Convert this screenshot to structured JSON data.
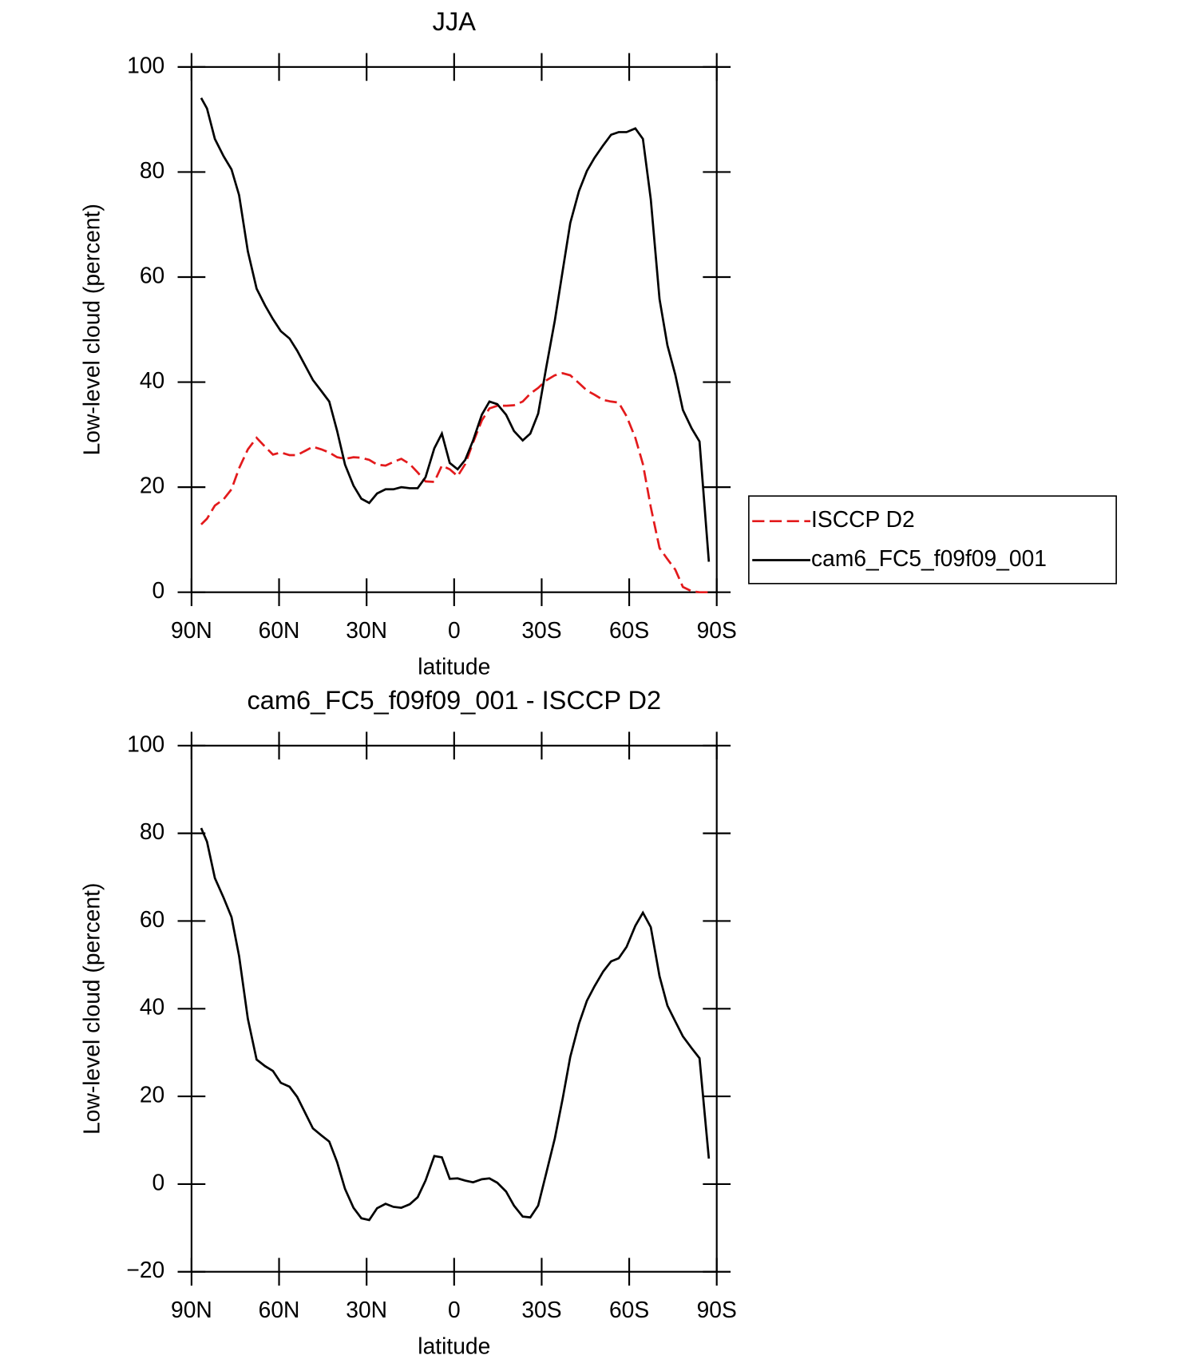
{
  "chart_data": [
    {
      "type": "line",
      "title": "JJA",
      "xlabel": "latitude",
      "ylabel": "Low-level cloud (percent)",
      "xlim": [
        90,
        -90
      ],
      "ylim": [
        0,
        100
      ],
      "xticks": [
        {
          "value": 90,
          "label": "90N"
        },
        {
          "value": 60,
          "label": "60N"
        },
        {
          "value": 30,
          "label": "30N"
        },
        0,
        {
          "value": -30,
          "label": "30S"
        },
        {
          "value": -60,
          "label": "60S"
        },
        {
          "value": -90,
          "label": "90S"
        }
      ],
      "yticks": [
        0,
        20,
        40,
        60,
        80,
        100
      ],
      "legend": "right",
      "x": [
        86.7,
        84.7,
        82.0,
        79.0,
        76.3,
        73.7,
        70.7,
        67.7,
        64.8,
        62.1,
        59.4,
        56.4,
        53.8,
        51.1,
        48.4,
        45.5,
        42.8,
        40.1,
        37.4,
        34.5,
        31.8,
        29.1,
        26.4,
        23.5,
        20.8,
        18.1,
        15.2,
        12.5,
        9.8,
        6.8,
        4.2,
        1.5,
        -1.2,
        -3.8,
        -6.5,
        -9.5,
        -12.1,
        -14.8,
        -17.8,
        -20.5,
        -23.5,
        -26.1,
        -28.8,
        -31.5,
        -34.5,
        -37.2,
        -39.8,
        -42.8,
        -45.5,
        -48.1,
        -51.1,
        -53.8,
        -56.4,
        -59.1,
        -62.1,
        -64.7,
        -67.4,
        -70.4,
        -73.1,
        -75.8,
        -78.4,
        -81.4,
        -84.1,
        -87.3
      ],
      "series": [
        {
          "name": "ISCCP D2",
          "color": "#e31a1c",
          "linestyle": "dashed",
          "values": [
            12.9,
            14.0,
            16.5,
            17.7,
            19.6,
            23.6,
            27.2,
            29.4,
            27.7,
            26.2,
            26.6,
            26.1,
            26.1,
            26.9,
            27.7,
            27.2,
            26.6,
            25.7,
            25.4,
            25.7,
            25.6,
            25.2,
            24.3,
            24.1,
            24.8,
            25.4,
            24.4,
            22.8,
            21.1,
            21.0,
            24.1,
            23.4,
            22.1,
            24.4,
            28.5,
            32.7,
            35.0,
            35.5,
            35.5,
            35.6,
            36.3,
            37.8,
            38.9,
            40.3,
            41.3,
            41.7,
            41.3,
            39.8,
            38.4,
            37.6,
            36.6,
            36.3,
            36.1,
            33.5,
            29.4,
            24.4,
            16.2,
            8.4,
            6.3,
            4.3,
            1.0,
            0.2,
            0,
            0
          ]
        },
        {
          "name": "cam6_FC5_f09f09_001",
          "color": "#000000",
          "linestyle": "solid",
          "values": [
            94.1,
            92.1,
            86.3,
            83.0,
            80.5,
            75.6,
            64.9,
            57.8,
            54.6,
            52.0,
            49.7,
            48.3,
            46.0,
            43.2,
            40.4,
            38.3,
            36.3,
            30.7,
            24.3,
            20.3,
            17.8,
            17.0,
            18.8,
            19.6,
            19.6,
            20.0,
            19.8,
            19.8,
            21.9,
            27.4,
            30.2,
            24.6,
            23.4,
            25.2,
            28.9,
            33.8,
            36.3,
            35.8,
            33.8,
            30.7,
            28.9,
            30.2,
            34.0,
            42.6,
            51.7,
            61.2,
            70.3,
            76.4,
            80.2,
            82.7,
            85.1,
            87.1,
            87.6,
            87.6,
            88.3,
            86.3,
            74.8,
            55.8,
            47.0,
            41.4,
            34.7,
            31.2,
            28.7,
            5.8
          ]
        }
      ]
    },
    {
      "type": "line",
      "title": "cam6_FC5_f09f09_001 - ISCCP D2",
      "xlabel": "latitude",
      "ylabel": "Low-level cloud (percent)",
      "xlim": [
        90,
        -90
      ],
      "ylim": [
        -20,
        100
      ],
      "xticks": [
        {
          "value": 90,
          "label": "90N"
        },
        {
          "value": 60,
          "label": "60N"
        },
        {
          "value": 30,
          "label": "30N"
        },
        0,
        {
          "value": -30,
          "label": "30S"
        },
        {
          "value": -60,
          "label": "60S"
        },
        {
          "value": -90,
          "label": "90S"
        }
      ],
      "yticks": [
        {
          "value": -20,
          "label": "−20"
        },
        0,
        20,
        40,
        60,
        80,
        100
      ],
      "x": [
        86.7,
        84.7,
        82.0,
        79.0,
        76.3,
        73.7,
        70.7,
        67.7,
        64.8,
        62.1,
        59.4,
        56.4,
        53.8,
        51.1,
        48.4,
        45.5,
        42.8,
        40.1,
        37.4,
        34.5,
        31.8,
        29.1,
        26.4,
        23.5,
        20.8,
        18.1,
        15.2,
        12.5,
        9.8,
        6.8,
        4.2,
        1.5,
        -1.2,
        -3.8,
        -6.5,
        -9.5,
        -12.1,
        -14.8,
        -17.8,
        -20.5,
        -23.5,
        -26.1,
        -28.8,
        -31.5,
        -34.5,
        -37.2,
        -39.8,
        -42.8,
        -45.5,
        -48.1,
        -51.1,
        -53.8,
        -56.4,
        -59.1,
        -62.1,
        -64.7,
        -67.4,
        -70.4,
        -73.1,
        -75.8,
        -78.4,
        -81.4,
        -84.1,
        -87.3
      ],
      "series": [
        {
          "color": "#000000",
          "linestyle": "solid",
          "values": [
            81.2,
            78.1,
            69.8,
            65.3,
            60.9,
            52.0,
            37.7,
            28.4,
            26.9,
            25.8,
            23.1,
            22.2,
            19.9,
            16.3,
            12.7,
            11.1,
            9.7,
            5.0,
            -1.1,
            -5.4,
            -7.8,
            -8.2,
            -5.5,
            -4.5,
            -5.2,
            -5.4,
            -4.6,
            -3.0,
            0.8,
            6.4,
            6.1,
            1.2,
            1.3,
            0.8,
            0.4,
            1.1,
            1.3,
            0.3,
            -1.7,
            -4.9,
            -7.4,
            -7.6,
            -4.9,
            2.3,
            10.4,
            19.5,
            29.0,
            36.6,
            41.8,
            45.1,
            48.5,
            50.8,
            51.5,
            54.1,
            58.9,
            61.9,
            58.6,
            47.4,
            40.7,
            37.1,
            33.7,
            31.0,
            28.7,
            5.8
          ]
        }
      ]
    }
  ]
}
